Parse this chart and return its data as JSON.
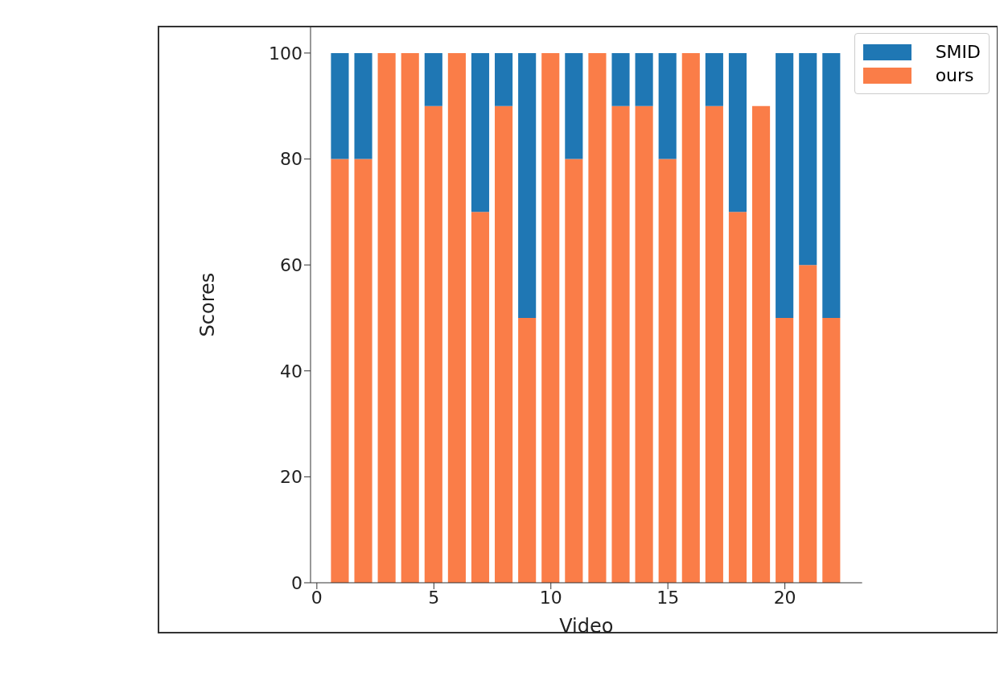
{
  "chart_data": {
    "type": "bar",
    "stacked": true,
    "xlabel": "Video",
    "ylabel": "Scores",
    "x": [
      1,
      2,
      3,
      4,
      5,
      6,
      7,
      8,
      9,
      10,
      11,
      12,
      13,
      14,
      15,
      16,
      17,
      18,
      19,
      20,
      21,
      22
    ],
    "series": [
      {
        "name": "ours",
        "color": "#fa7d48",
        "values": [
          80,
          80,
          100,
          100,
          90,
          100,
          70,
          90,
          50,
          100,
          80,
          100,
          90,
          90,
          80,
          100,
          90,
          70,
          90,
          50,
          60,
          50
        ]
      },
      {
        "name": "SMID",
        "color": "#1f77b4",
        "values": [
          20,
          20,
          0,
          0,
          10,
          0,
          30,
          10,
          50,
          0,
          20,
          0,
          10,
          10,
          20,
          0,
          10,
          30,
          null,
          50,
          40,
          50
        ]
      }
    ],
    "xlim": [
      -0.27,
      23.3
    ],
    "xticks": [
      0,
      5,
      10,
      15,
      20
    ],
    "ylim": [
      0,
      105
    ],
    "yticks": [
      0,
      20,
      40,
      60,
      80,
      100
    ],
    "grid": false,
    "legend": "top right"
  }
}
